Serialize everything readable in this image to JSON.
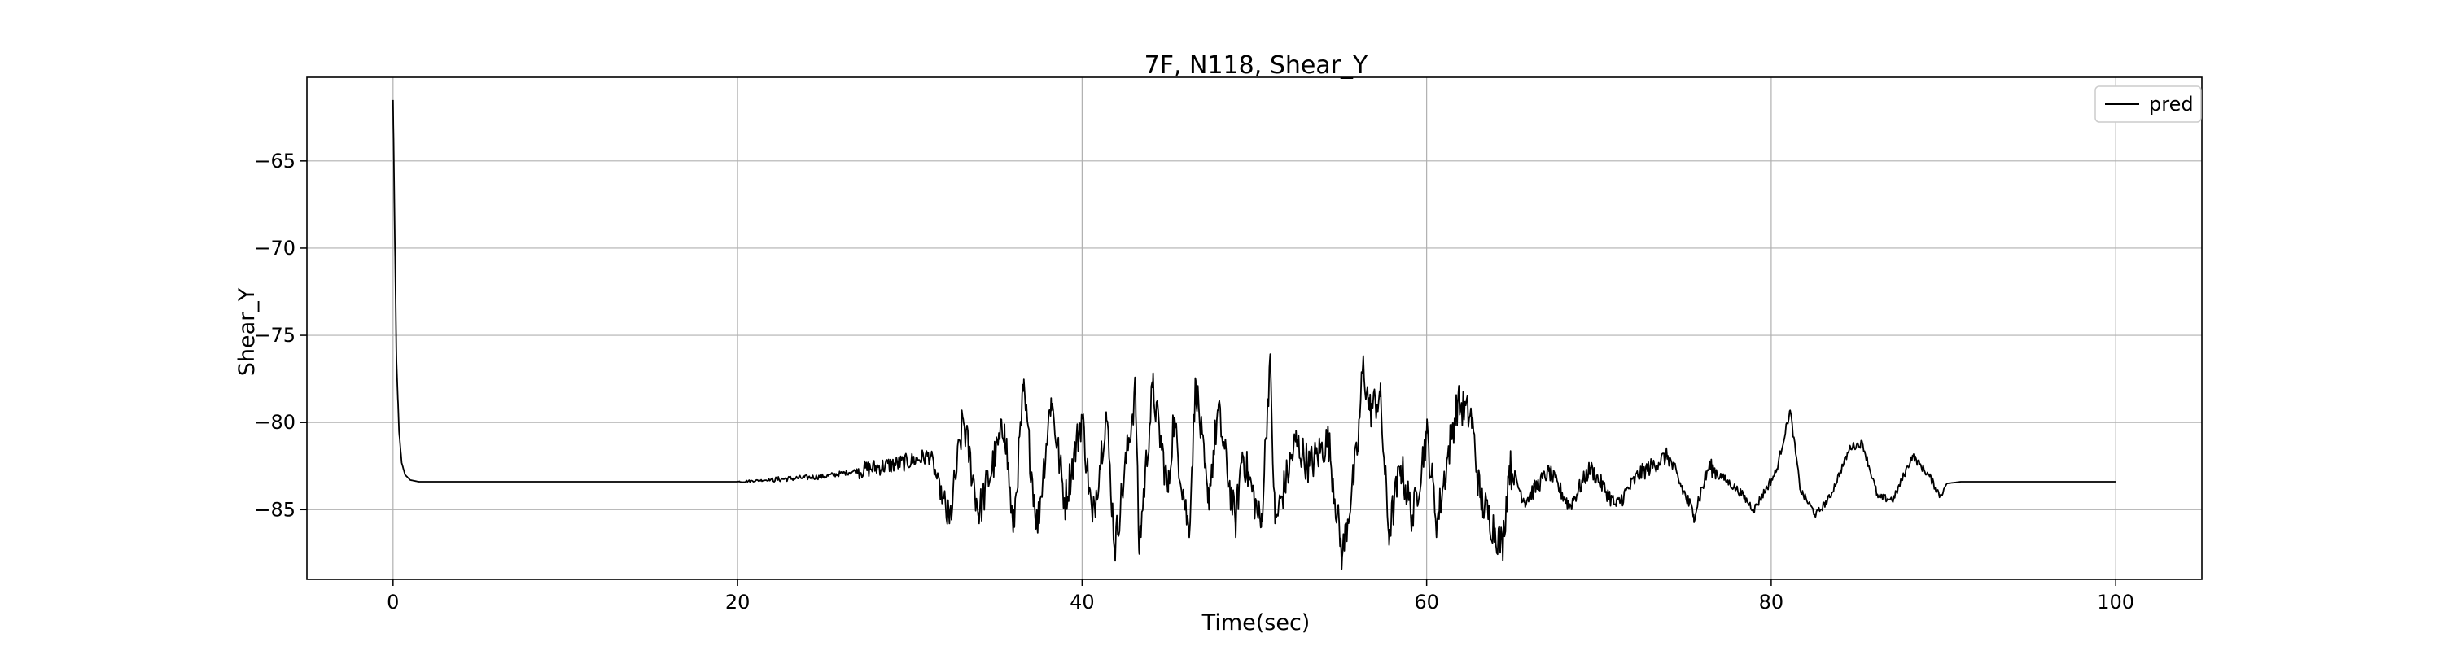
{
  "chart_data": {
    "type": "line",
    "title": "7F, N118, Shear_Y",
    "xlabel": "Time(sec)",
    "ylabel": "Shear_Y",
    "xlim": [
      -5,
      105
    ],
    "ylim": [
      -89,
      -60.2
    ],
    "xticks": [
      0,
      20,
      40,
      60,
      80,
      100
    ],
    "yticks": [
      -85,
      -80,
      -75,
      -70,
      -65
    ],
    "grid": true,
    "legend_position": "top-right",
    "series": [
      {
        "name": "pred",
        "color": "#000000",
        "baseline": -83.4,
        "initial_peak": -61.5,
        "keypoints": [
          [
            0.0,
            -61.5
          ],
          [
            0.1,
            -69.0
          ],
          [
            0.2,
            -76.5
          ],
          [
            0.35,
            -80.5
          ],
          [
            0.5,
            -82.3
          ],
          [
            0.7,
            -83.0
          ],
          [
            1.0,
            -83.3
          ],
          [
            1.5,
            -83.4
          ],
          [
            20,
            -83.4
          ],
          [
            25,
            -83.1
          ],
          [
            29.7,
            -82.3
          ],
          [
            31.2,
            -81.9
          ],
          [
            32.3,
            -85.8
          ],
          [
            33.1,
            -79.8
          ],
          [
            34.0,
            -85.2
          ],
          [
            35.5,
            -80.1
          ],
          [
            36.0,
            -86.3
          ],
          [
            36.6,
            -78.2
          ],
          [
            37.4,
            -86.0
          ],
          [
            38.2,
            -78.6
          ],
          [
            39.0,
            -84.6
          ],
          [
            40.0,
            -79.6
          ],
          [
            40.6,
            -85.7
          ],
          [
            41.4,
            -79.4
          ],
          [
            41.9,
            -87.2
          ],
          [
            43.1,
            -78.1
          ],
          [
            43.3,
            -87.3
          ],
          [
            44.1,
            -78.0
          ],
          [
            45.0,
            -84.0
          ],
          [
            45.3,
            -79.8
          ],
          [
            46.2,
            -86.3
          ],
          [
            46.6,
            -77.6
          ],
          [
            47.3,
            -84.6
          ],
          [
            47.9,
            -79.3
          ],
          [
            48.9,
            -85.8
          ],
          [
            49.3,
            -81.7
          ],
          [
            50.4,
            -86.0
          ],
          [
            50.9,
            -76.4
          ],
          [
            51.2,
            -85.8
          ],
          [
            52.4,
            -81.1
          ],
          [
            53.2,
            -82.5
          ],
          [
            54.3,
            -81.0
          ],
          [
            55.1,
            -87.7
          ],
          [
            56.0,
            -81.5
          ],
          [
            56.3,
            -76.7
          ],
          [
            56.7,
            -79.3
          ],
          [
            57.3,
            -78.5
          ],
          [
            57.8,
            -86.4
          ],
          [
            58.5,
            -82.5
          ],
          [
            59.2,
            -85.5
          ],
          [
            60.0,
            -80.6
          ],
          [
            60.6,
            -85.8
          ],
          [
            61.4,
            -80.9
          ],
          [
            61.8,
            -78.9
          ],
          [
            62.6,
            -79.7
          ],
          [
            63.1,
            -84.3
          ],
          [
            64.4,
            -87.1
          ],
          [
            64.8,
            -82.5
          ],
          [
            65.7,
            -84.5
          ],
          [
            67.1,
            -82.8
          ],
          [
            68.3,
            -84.8
          ],
          [
            69.5,
            -82.6
          ],
          [
            71.0,
            -84.8
          ],
          [
            72.3,
            -83.0
          ],
          [
            74.0,
            -81.9
          ],
          [
            75.5,
            -85.3
          ],
          [
            76.4,
            -82.5
          ],
          [
            78.2,
            -84.0
          ],
          [
            79.0,
            -85.0
          ],
          [
            80.3,
            -82.8
          ],
          [
            81.1,
            -79.3
          ],
          [
            81.7,
            -83.9
          ],
          [
            82.6,
            -85.3
          ],
          [
            83.4,
            -84.3
          ],
          [
            84.6,
            -81.4
          ],
          [
            85.3,
            -81.2
          ],
          [
            86.2,
            -84.3
          ],
          [
            87.1,
            -84.4
          ],
          [
            88.2,
            -81.9
          ],
          [
            89.2,
            -83.1
          ],
          [
            89.8,
            -84.2
          ],
          [
            90.2,
            -83.5
          ],
          [
            91.0,
            -83.4
          ],
          [
            100.0,
            -83.4
          ]
        ]
      }
    ]
  }
}
